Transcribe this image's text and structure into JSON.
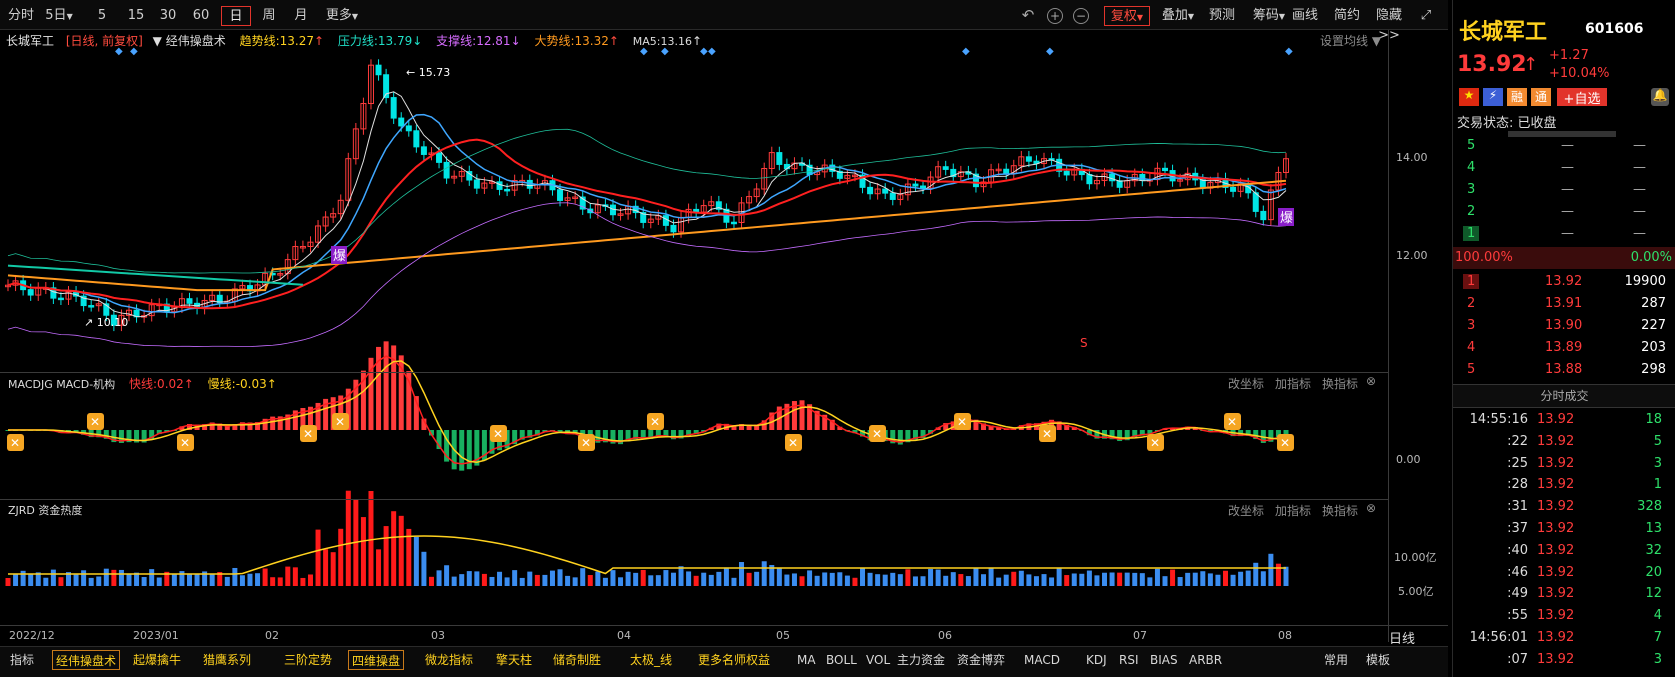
{
  "toolbar": {
    "periods": [
      "分时",
      "5日",
      "5",
      "15",
      "30",
      "60",
      "日",
      "周",
      "月",
      "更多"
    ],
    "fuquan": "复权",
    "tools": [
      "叠加",
      "预测",
      "筹码",
      "画线",
      "简约",
      "隐藏>>"
    ]
  },
  "chart": {
    "name": "长城军工",
    "period": "[日线, 前复权]",
    "indicator": "经伟操盘术",
    "lines": {
      "trend": "趋势线:13.27",
      "pressure": "压力线:13.79",
      "support": "支撑线:12.81",
      "big": "大势线:13.32",
      "ma5": "MA5:13.16"
    },
    "setting": "设置均线",
    "high_label": "15.73",
    "low_label": "10.10",
    "burst": "爆",
    "s_mark": "S"
  },
  "price_axis": [
    "14.00",
    "12.00"
  ],
  "macd": {
    "name": "MACDJG MACD-机构",
    "fast": "快线:0.02",
    "slow": "慢线:-0.03",
    "zero": "0.00"
  },
  "zjrd": {
    "name": "ZJRD 资金热度",
    "y1": "10.00亿",
    "y2": "5.00亿"
  },
  "panel_tools": [
    "改坐标",
    "加指标",
    "换指标"
  ],
  "dates": [
    "2022/12",
    "2023/01",
    "02",
    "03",
    "04",
    "05",
    "06",
    "07",
    "08"
  ],
  "date_right": "日线",
  "bottom_tabs": [
    "指标",
    "经伟操盘术",
    "起爆擒牛",
    "猎鹰系列",
    "三阶定势",
    "四维操盘",
    "微龙指标",
    "擎天柱",
    "储奇制胜",
    "太极_线",
    "更多名师权益",
    "MA",
    "BOLL",
    "VOL",
    "主力资金",
    "资金博弈",
    "MACD",
    "KDJ",
    "RSI",
    "BIAS",
    "ARBR",
    "常用",
    "模板"
  ],
  "stock": {
    "name": "长城军工",
    "code": "601606",
    "price": "13.92",
    "change": "+1.27",
    "pct": "+10.04%",
    "status_label": "交易状态:",
    "status": "已收盘",
    "tags": [
      "融",
      "通",
      "+自选"
    ]
  },
  "orders_ask": [
    "5",
    "4",
    "3",
    "2",
    "1"
  ],
  "ask_vals": "—",
  "ratio": {
    "left": "100.00%",
    "right": "0.00%"
  },
  "bids": [
    {
      "n": "1",
      "p": "13.92",
      "v": "19900"
    },
    {
      "n": "2",
      "p": "13.91",
      "v": "287"
    },
    {
      "n": "3",
      "p": "13.90",
      "v": "227"
    },
    {
      "n": "4",
      "p": "13.89",
      "v": "203"
    },
    {
      "n": "5",
      "p": "13.88",
      "v": "298"
    }
  ],
  "trades_title": "分时成交",
  "trades": [
    [
      "14:55:16",
      "13.92",
      "18"
    ],
    [
      ":22",
      "13.92",
      "5"
    ],
    [
      ":25",
      "13.92",
      "3"
    ],
    [
      ":28",
      "13.92",
      "1"
    ],
    [
      ":31",
      "13.92",
      "328"
    ],
    [
      ":37",
      "13.92",
      "13"
    ],
    [
      ":40",
      "13.92",
      "32"
    ],
    [
      ":46",
      "13.92",
      "20"
    ],
    [
      ":49",
      "13.92",
      "12"
    ],
    [
      ":55",
      "13.92",
      "4"
    ],
    [
      "14:56:01",
      "13.92",
      "7"
    ],
    [
      ":07",
      "13.92",
      "3"
    ]
  ],
  "colors": {
    "up": "#ff3b3b",
    "down": "#00e5e5",
    "ma": "#3fa7ff",
    "trend": "#ff2020",
    "big": "#ff9a1f",
    "zjblue": "#3b8df0",
    "zjred": "#ff1a1a"
  }
}
